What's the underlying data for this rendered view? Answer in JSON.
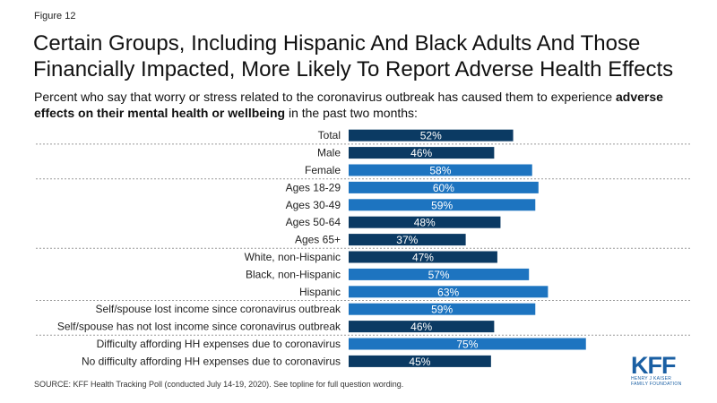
{
  "figure_label": "Figure 12",
  "title": "Certain Groups, Including Hispanic And Black Adults And Those Financially Impacted, More Likely To Report Adverse Health Effects",
  "subtitle_prefix": "Percent who say that worry or stress related to the coronavirus outbreak has caused them to experience ",
  "subtitle_bold": "adverse effects on their mental health or wellbeing",
  "subtitle_suffix": " in the past two months:",
  "source": "SOURCE: KFF Health Tracking Poll (conducted July 14-19, 2020). See topline for full question wording.",
  "logo": {
    "mark": "KFF",
    "line1": "HENRY J KAISER",
    "line2": "FAMILY FOUNDATION"
  },
  "colors": {
    "dark_bar": "#0b3a63",
    "light_bar": "#1d74c0",
    "separator": "#9a9a9a"
  },
  "chart_data": {
    "type": "bar",
    "orientation": "horizontal",
    "value_suffix": "%",
    "xlim": [
      0,
      100
    ],
    "categories": [
      "Total",
      "Male",
      "Female",
      "Ages 18-29",
      "Ages 30-49",
      "Ages 50-64",
      "Ages 65+",
      "White, non-Hispanic",
      "Black, non-Hispanic",
      "Hispanic",
      "Self/spouse lost income since coronavirus outbreak",
      "Self/spouse has not lost income since coronavirus outbreak",
      "Difficulty affording HH expenses due to coronavirus",
      "No difficulty affording HH expenses due to coronavirus"
    ],
    "values": [
      52,
      46,
      58,
      60,
      59,
      48,
      37,
      47,
      57,
      63,
      59,
      46,
      75,
      45
    ],
    "bar_colors": [
      "dark",
      "dark",
      "light",
      "light",
      "light",
      "dark",
      "dark",
      "dark",
      "light",
      "light",
      "light",
      "dark",
      "light",
      "dark"
    ],
    "group_breaks_after": [
      0,
      2,
      6,
      9,
      11
    ]
  }
}
